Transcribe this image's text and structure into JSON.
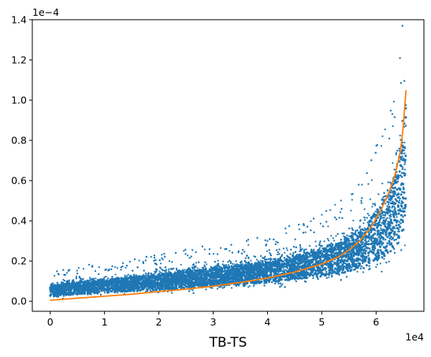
{
  "chart_data": {
    "type": "scatter",
    "title": "",
    "xlabel": "TB-TS",
    "ylabel": "",
    "x_offset_label": "1e4",
    "y_offset_label": "1e−4",
    "xlim": [
      -3300,
      68800
    ],
    "ylim": [
      -5e-06,
      0.00014
    ],
    "x_ticks": [
      0,
      10000,
      20000,
      30000,
      40000,
      50000,
      60000
    ],
    "x_tick_labels": [
      "0",
      "1",
      "2",
      "3",
      "4",
      "5",
      "6"
    ],
    "y_ticks": [
      0,
      2e-05,
      4e-05,
      6e-05,
      8e-05,
      0.0001,
      0.00012,
      0.00014
    ],
    "y_tick_labels": [
      "0.0",
      "0.2",
      "0.4",
      "0.6",
      "0.8",
      "1.0",
      "1.2",
      "1.4"
    ],
    "grid": false,
    "legend": "none",
    "colors": {
      "scatter": "#1f77b4",
      "fit_line": "#ff7f0e"
    },
    "series": [
      {
        "kind": "scatter",
        "x_range": [
          0,
          65500
        ],
        "band_lower": [
          [
            0,
            5e-07
          ],
          [
            10000,
            1.5e-06
          ],
          [
            20000,
            2.5e-06
          ],
          [
            30000,
            4e-06
          ],
          [
            40000,
            5e-06
          ],
          [
            50000,
            7e-06
          ],
          [
            55000,
            8e-06
          ],
          [
            60000,
            1e-05
          ],
          [
            63000,
            1.2e-05
          ],
          [
            65000,
            1.5e-05
          ],
          [
            65500,
            2e-05
          ]
        ],
        "band_upper": [
          [
            0,
            1.1e-05
          ],
          [
            10000,
            1.5e-05
          ],
          [
            20000,
            1.8e-05
          ],
          [
            30000,
            2.2e-05
          ],
          [
            40000,
            2.6e-05
          ],
          [
            50000,
            3.4e-05
          ],
          [
            55000,
            4.2e-05
          ],
          [
            58000,
            5e-05
          ],
          [
            60000,
            6e-05
          ],
          [
            62000,
            7e-05
          ],
          [
            64000,
            9e-05
          ],
          [
            65000,
            0.000115
          ],
          [
            65500,
            0.000135
          ]
        ]
      },
      {
        "kind": "line",
        "x": [
          0,
          5000,
          10000,
          15000,
          20000,
          25000,
          30000,
          35000,
          40000,
          45000,
          50000,
          53000,
          55000,
          57000,
          59000,
          61000,
          62500,
          63500,
          64500,
          65000,
          65500
        ],
        "y": [
          5e-07,
          1.5e-06,
          2.5e-06,
          3.5e-06,
          4.8e-06,
          6e-06,
          7.5e-06,
          9.3e-06,
          1.15e-05,
          1.45e-05,
          1.85e-05,
          2.2e-05,
          2.55e-05,
          3e-05,
          3.65e-05,
          4.6e-05,
          5.5e-05,
          6.3e-05,
          7.5e-05,
          8.7e-05,
          0.000105
        ]
      }
    ]
  }
}
